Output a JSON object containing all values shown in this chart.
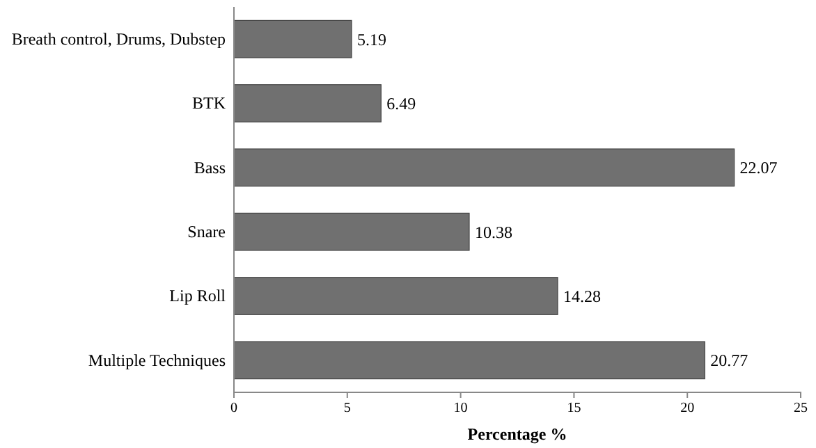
{
  "chart_data": {
    "type": "bar",
    "orientation": "horizontal",
    "categories": [
      "Breath control, Drums, Dubstep",
      "BTK",
      "Bass",
      "Snare",
      "Lip Roll",
      "Multiple Techniques"
    ],
    "values": [
      5.19,
      6.49,
      22.07,
      10.38,
      14.28,
      20.77
    ],
    "color": "#707070",
    "xlim": [
      0,
      25
    ],
    "xticks": [
      0,
      5,
      10,
      15,
      20,
      25
    ],
    "xlabel": "Percentage %",
    "data_labels": true
  }
}
